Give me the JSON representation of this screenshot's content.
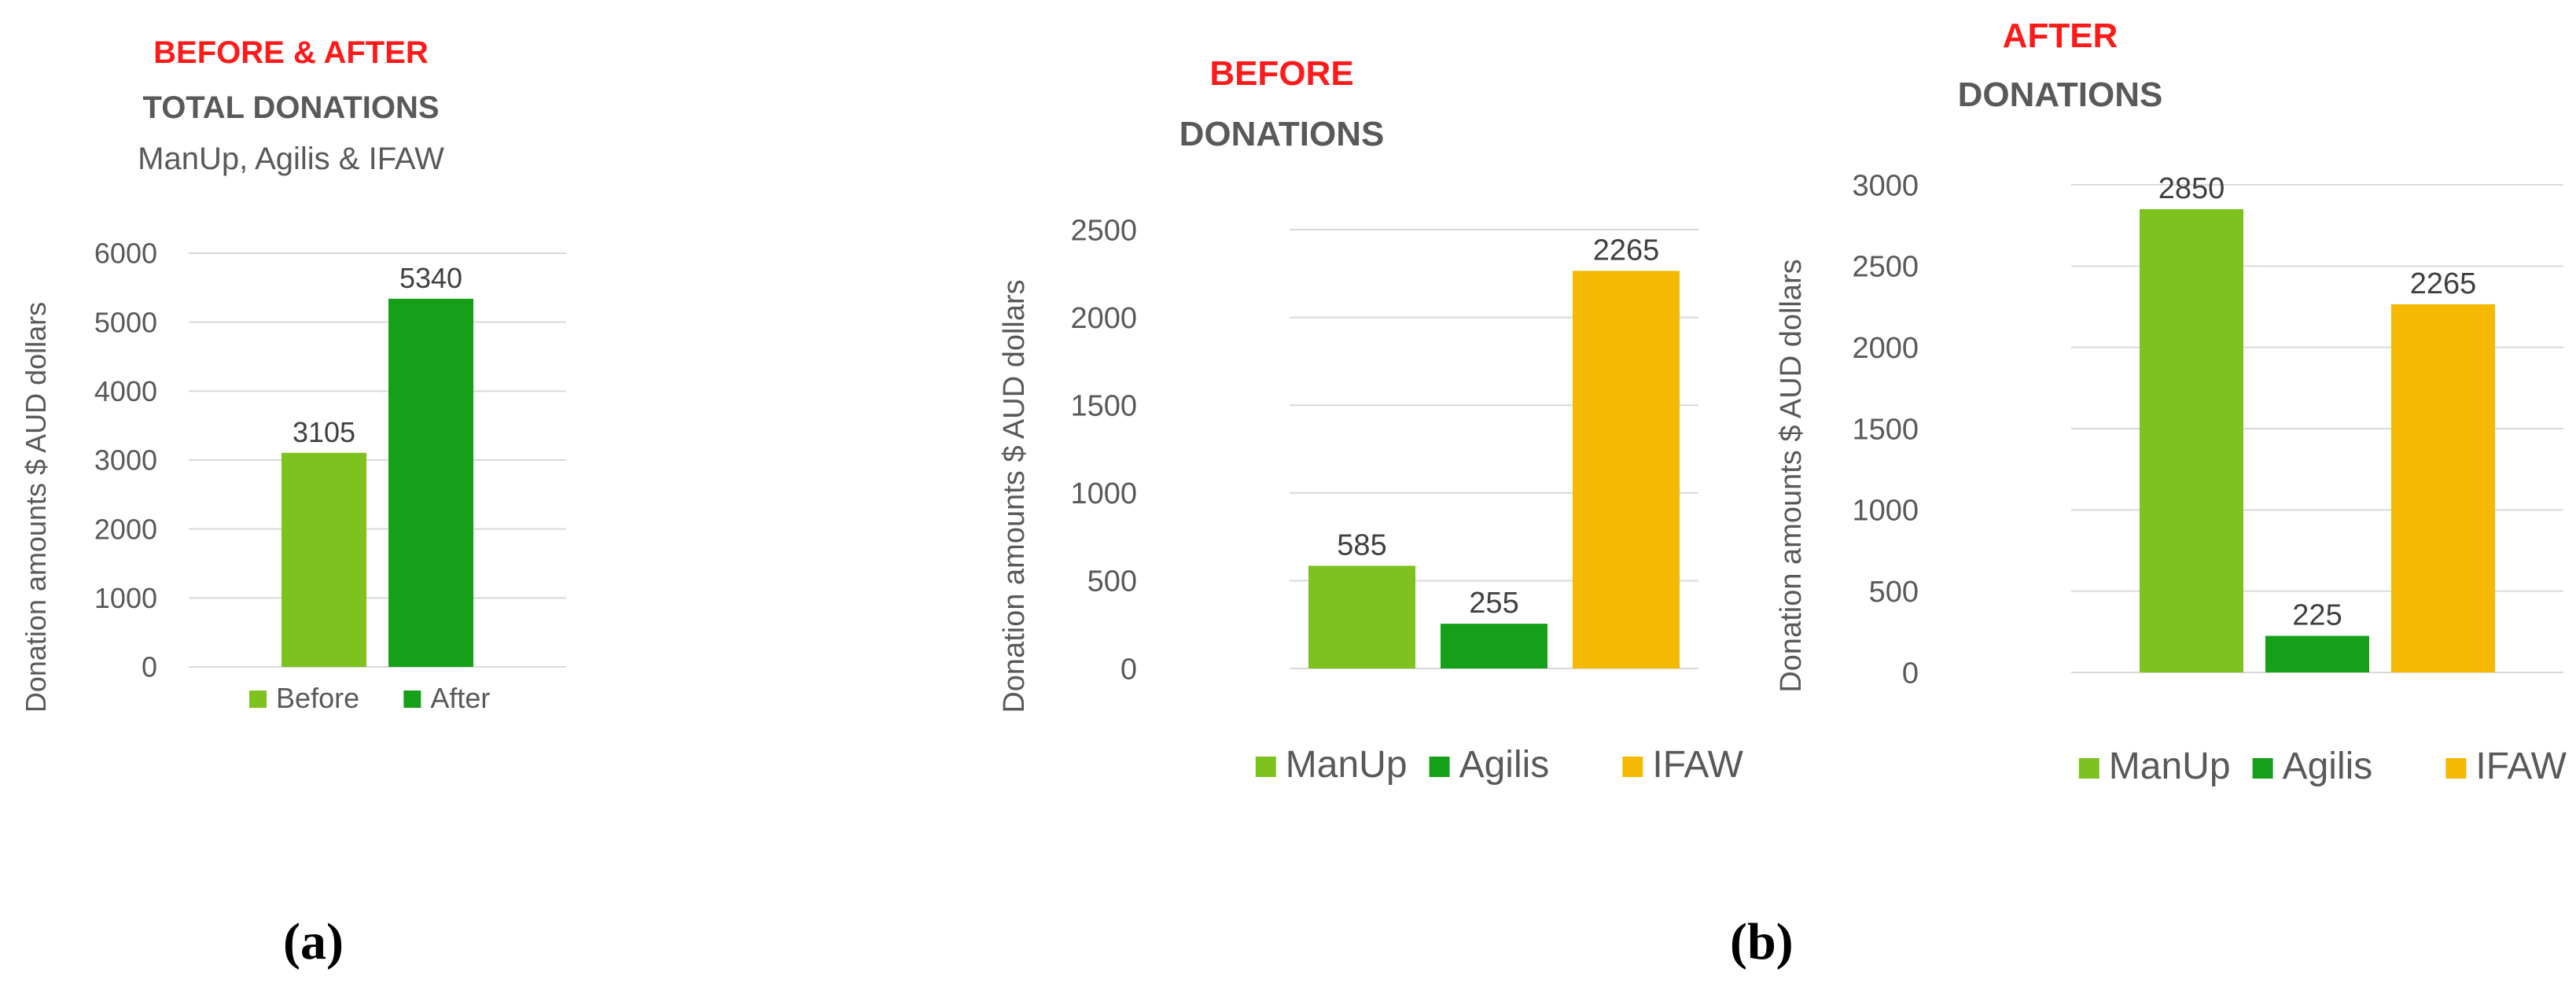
{
  "captions": {
    "a": "(a)",
    "b": "(b)"
  },
  "colors": {
    "manup": "#7dc21f",
    "agilis": "#16a019",
    "ifaw": "#f6b901",
    "before": "#7dc21f",
    "after": "#16a019",
    "title_red": "#ff1a1a",
    "title_grey": "#595959",
    "grid": "#d9d9d9"
  },
  "chart_data": [
    {
      "type": "bar",
      "title_line1": "BEFORE & AFTER",
      "title_line2": "TOTAL DONATIONS",
      "subtitle": "ManUp, Agilis & IFAW",
      "ylabel": "Donation amounts $ AUD dollars",
      "ylim": [
        0,
        6000
      ],
      "yticks": [
        0,
        1000,
        2000,
        3000,
        4000,
        5000,
        6000
      ],
      "grid": true,
      "legend_position": "bottom",
      "series": [
        {
          "name": "Before",
          "values": [
            3105
          ]
        },
        {
          "name": "After",
          "values": [
            5340
          ]
        }
      ]
    },
    {
      "type": "bar",
      "title_line1": "BEFORE",
      "title_line2": "DONATIONS",
      "ylabel": "Donation amounts $ AUD dollars",
      "ylim": [
        0,
        2500
      ],
      "yticks": [
        0,
        500,
        1000,
        1500,
        2000,
        2500
      ],
      "grid": true,
      "legend_position": "bottom",
      "series": [
        {
          "name": "ManUp",
          "values": [
            585
          ]
        },
        {
          "name": "Agilis",
          "values": [
            255
          ]
        },
        {
          "name": "IFAW",
          "values": [
            2265
          ]
        }
      ]
    },
    {
      "type": "bar",
      "title_line1": "AFTER",
      "title_line2": "DONATIONS",
      "ylabel": "Donation amounts $ AUD dollars",
      "ylim": [
        0,
        3000
      ],
      "yticks": [
        0,
        500,
        1000,
        1500,
        2000,
        2500,
        3000
      ],
      "grid": true,
      "legend_position": "bottom",
      "series": [
        {
          "name": "ManUp",
          "values": [
            2850
          ]
        },
        {
          "name": "Agilis",
          "values": [
            225
          ]
        },
        {
          "name": "IFAW",
          "values": [
            2265
          ]
        }
      ]
    }
  ]
}
